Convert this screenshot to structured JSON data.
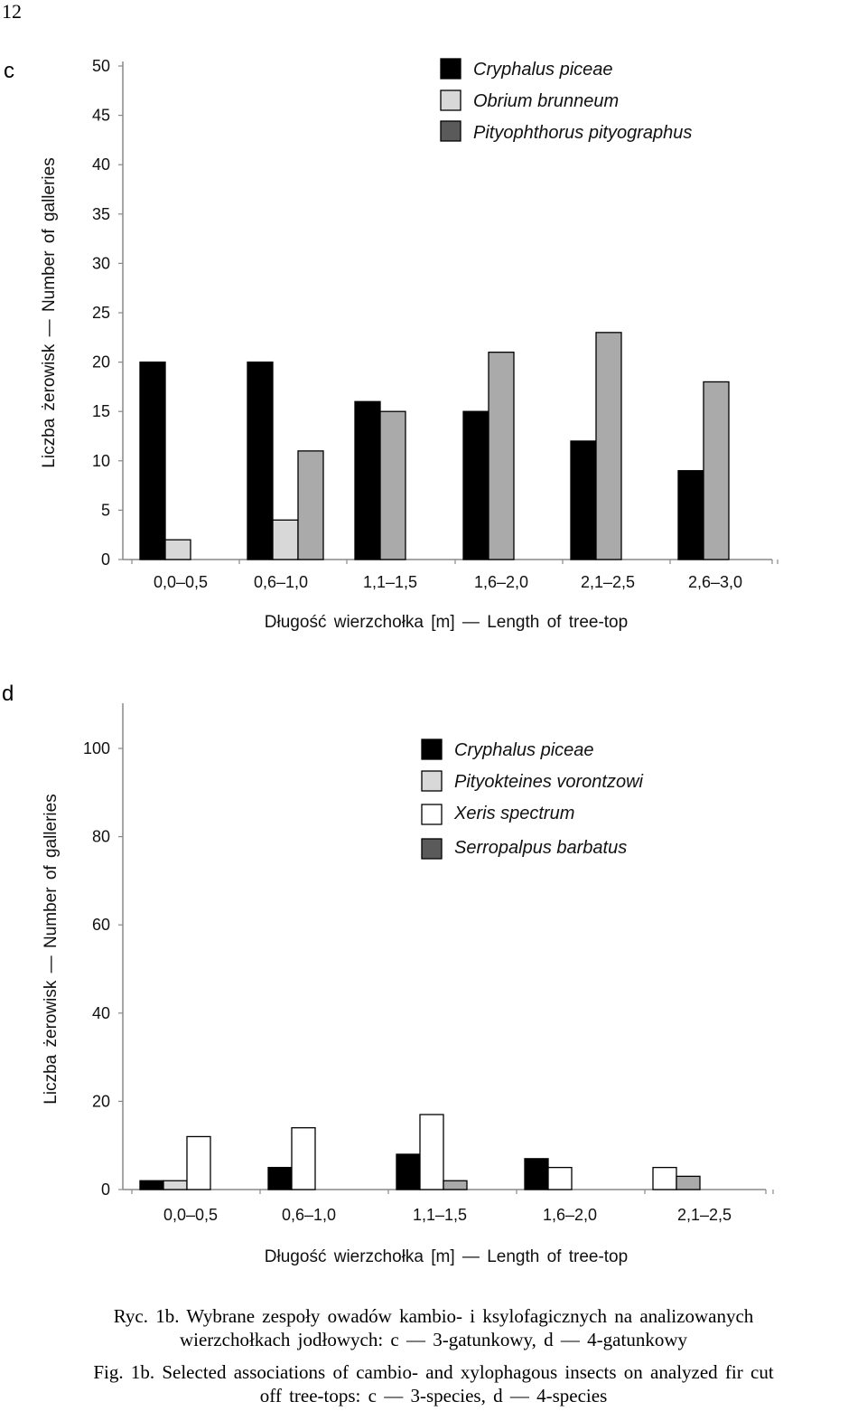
{
  "page_number": "12",
  "chart_data": [
    {
      "panel_label": "c",
      "type": "bar",
      "ylabel": "Liczba żerowisk — Number of galleries",
      "xlabel": "Długość wierzchołka [m] — Length of tree-top",
      "ylim": [
        0,
        50
      ],
      "yticks": [
        0,
        5,
        10,
        15,
        20,
        25,
        30,
        35,
        40,
        45,
        50
      ],
      "categories": [
        "0,0–0,5",
        "0,6–1,0",
        "1,1–1,5",
        "1,6–2,0",
        "2,1–2,5",
        "2,6–3,0"
      ],
      "grid": false,
      "legend_position": "top-right",
      "series": [
        {
          "name": "Cryphalus  piceae",
          "color": "#000000",
          "values": [
            20,
            20,
            16,
            15,
            12,
            9
          ]
        },
        {
          "name": "Obrium  brunneum",
          "color": "#d8d8d8",
          "values": [
            2,
            4,
            0,
            0,
            0,
            0
          ]
        },
        {
          "name": "Pityophthorus  pityographus",
          "color": "#aaaaaa",
          "legend_color": "#5a5a5a",
          "values": [
            0,
            11,
            15,
            21,
            23,
            18
          ]
        }
      ]
    },
    {
      "panel_label": "d",
      "type": "bar",
      "ylabel": "Liczba żerowisk — Number of galleries",
      "xlabel": "Długość wierzchołka [m] — Length of tree-top",
      "ylim": [
        0,
        110
      ],
      "yticks": [
        0,
        20,
        40,
        60,
        80,
        100
      ],
      "categories": [
        "0,0–0,5",
        "0,6–1,0",
        "1,1–1,5",
        "1,6–2,0",
        "2,1–2,5"
      ],
      "grid": false,
      "legend_position": "top-right",
      "series": [
        {
          "name": "Cryphalus  piceae",
          "color": "#000000",
          "values": [
            2,
            5,
            8,
            7,
            0
          ]
        },
        {
          "name": "Pityokteines  vorontzowi",
          "color": "#d8d8d8",
          "values": [
            2,
            0,
            0,
            0,
            0
          ]
        },
        {
          "name": "Xeris  spectrum",
          "color": "#ffffff",
          "values": [
            12,
            14,
            17,
            5,
            5
          ]
        },
        {
          "name": "Serropalpus  barbatus",
          "color": "#aaaaaa",
          "legend_color": "#5a5a5a",
          "values": [
            0,
            0,
            2,
            0,
            3
          ]
        }
      ]
    }
  ],
  "caption": {
    "pl_line1": "Ryc. 1b. Wybrane zespoły owadów kambio- i ksylofagicznych na analizowanych",
    "pl_line2": "wierzchołkach jodłowych: c — 3-gatunkowy, d — 4-gatunkowy",
    "en_line1": "Fig. 1b. Selected associations of cambio- and xylophagous insects on analyzed fir cut",
    "en_line2": "off tree-tops: c — 3-species, d — 4-species"
  }
}
